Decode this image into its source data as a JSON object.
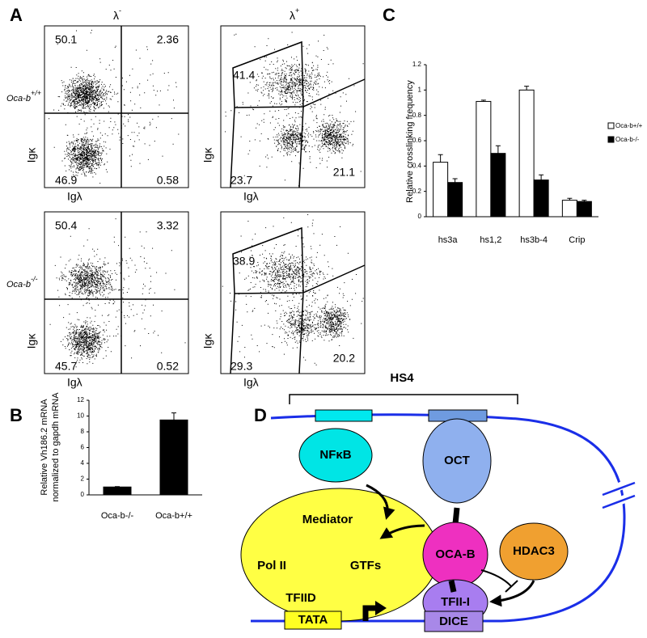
{
  "panel_a": {
    "label": "A",
    "columns": [
      {
        "base": "λ",
        "sup": "-"
      },
      {
        "base": "λ",
        "sup": "+"
      }
    ],
    "rows": [
      {
        "base": "Oca-b",
        "sup": "+/+"
      },
      {
        "base": "Oca-b",
        "sup": "-/-"
      }
    ],
    "y_label": "Igκ",
    "x_label": "Igλ",
    "plots": [
      {
        "gate": "quadrant",
        "values": [
          50.1,
          2.36,
          46.9,
          0.58
        ]
      },
      {
        "gate": "polygon",
        "values": [
          41.4,
          23.7,
          21.1
        ]
      },
      {
        "gate": "quadrant",
        "values": [
          50.4,
          3.32,
          45.7,
          0.52
        ]
      },
      {
        "gate": "polygon",
        "values": [
          38.9,
          29.3,
          20.2
        ]
      }
    ]
  },
  "panel_b": {
    "label": "B",
    "chart_data": {
      "type": "bar",
      "y_label": [
        "Relative Vh186.2 mRNA",
        "normalized  to gapdh mRNA"
      ],
      "categories": [
        "Oca-b-/-",
        "Oca-b+/+"
      ],
      "series": [
        {
          "color": "#000000",
          "values": [
            1,
            9.5
          ],
          "errors": [
            0.05,
            0.9
          ]
        }
      ],
      "ylim": [
        0,
        12
      ],
      "yticks": [
        0,
        2,
        4,
        6,
        8,
        10,
        12
      ]
    }
  },
  "panel_c": {
    "label": "C",
    "chart_data": {
      "type": "bar",
      "y_label": "Relative crosslinking frequency",
      "categories": [
        "hs3a",
        "hs1,2",
        "hs3b-4",
        "Crip"
      ],
      "series": [
        {
          "name": "Oca-b+/+",
          "color": "#ffffff",
          "values": [
            0.43,
            0.91,
            1.0,
            0.13
          ],
          "errors": [
            0.06,
            0.01,
            0.03,
            0.015
          ]
        },
        {
          "name": "Oca-b-/-",
          "color": "#000000",
          "values": [
            0.27,
            0.5,
            0.29,
            0.12
          ],
          "errors": [
            0.03,
            0.06,
            0.04,
            0.01
          ]
        }
      ],
      "ylim": [
        0,
        1.2
      ],
      "yticks": [
        0,
        0.2,
        0.4,
        0.6,
        0.8,
        1,
        1.2
      ],
      "legend": "right"
    }
  },
  "panel_d": {
    "label": "D",
    "region": "HS4",
    "nodes": [
      "NFκB",
      "OCT",
      "Mediator",
      "Pol II",
      "GTFs",
      "TFIID",
      "OCA-B",
      "HDAC3",
      "TFII-I",
      "TATA",
      "DICE"
    ]
  }
}
